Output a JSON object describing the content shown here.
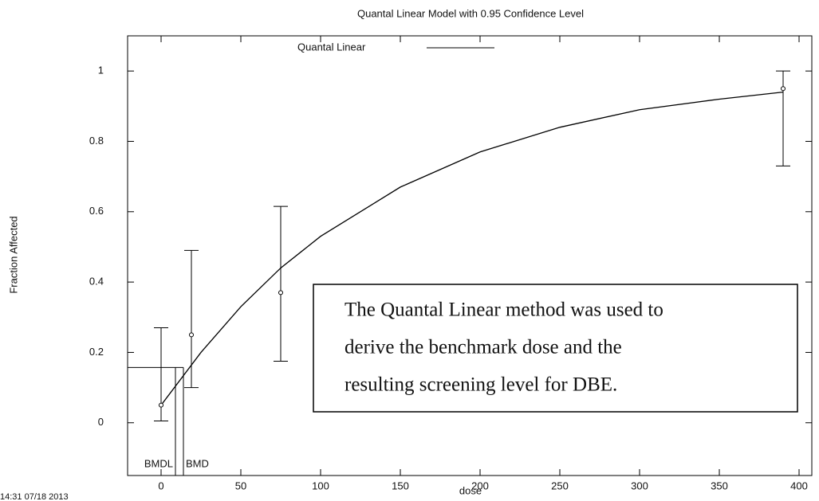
{
  "chart_data": {
    "type": "scatter",
    "title": "Quantal Linear Model with 0.95 Confidence Level",
    "x_label": "dose",
    "y_label": "Fraction Affected",
    "xlim": [
      -21,
      408
    ],
    "ylim": [
      -0.15,
      1.1
    ],
    "xticks": [
      0,
      50,
      100,
      150,
      200,
      250,
      300,
      350,
      400
    ],
    "yticks": [
      0,
      0.2,
      0.4,
      0.6,
      0.8,
      1
    ],
    "series": [
      {
        "name": "Quantal Linear",
        "color": "#000000",
        "x": [
          0,
          25,
          50,
          75,
          100,
          150,
          200,
          250,
          300,
          350,
          390
        ],
        "values": [
          0.05,
          0.2,
          0.33,
          0.44,
          0.53,
          0.67,
          0.77,
          0.84,
          0.89,
          0.92,
          0.94
        ]
      }
    ],
    "observed": {
      "x": [
        0,
        19,
        75,
        390
      ],
      "values": [
        0.05,
        0.25,
        0.37,
        0.95
      ],
      "lower": [
        0.005,
        0.1,
        0.175,
        0.73
      ],
      "upper": [
        0.27,
        0.49,
        0.615,
        1.0
      ]
    },
    "benchmark": {
      "bmr_level": 0.157,
      "bmdl": 9,
      "bmd": 14,
      "bmdl_label": "BMDL",
      "bmd_label": "BMD"
    },
    "annotation": [
      "The Quantal Linear method was used to",
      "derive the benchmark dose and the",
      "resulting screening level for DBE."
    ],
    "timestamp": "14:31 07/18 2013"
  }
}
